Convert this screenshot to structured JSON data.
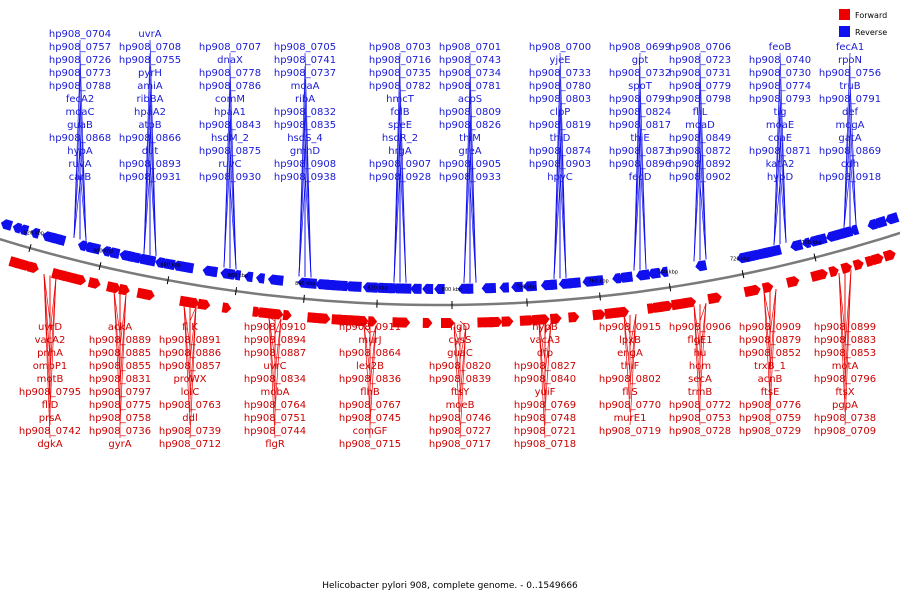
{
  "caption": "Helicobacter pylori 908, complete genome. - 0..1549666",
  "legend": [
    {
      "label": "Forward",
      "color": "#ee0000"
    },
    {
      "label": "Reverse",
      "color": "#1010ee"
    }
  ],
  "colors": {
    "forward": "#ee0000",
    "reverse": "#1010ee",
    "backbone": "#7a7a7a"
  },
  "ticks": [
    "920 kbp",
    "900 kbp",
    "880 kbp",
    "860 kbp",
    "840 kbp",
    "820 kbp",
    "800 kbp",
    "780 kbp",
    "760 kbp",
    "740 kbp",
    "720 kbp",
    "700 kbp"
  ],
  "reverse_labels": [
    "carB",
    "hp908_0931",
    "hp908_0930",
    "hp908_0938",
    "hp908_0928",
    "hp908_0933",
    "hpyC",
    "fecD",
    "hp908_0902",
    "hypD",
    "hp908_0918",
    "ruvA",
    "hp908_0893",
    "ruvC",
    "hp908_0908",
    "hp908_0907",
    "hp908_0905",
    "hp908_0903",
    "hp908_0896",
    "hp908_0892",
    "katA2",
    "cdh",
    "hypA",
    "dut",
    "hp908_0875",
    "gmhD",
    "hrgA",
    "greA",
    "hp908_0874",
    "hp908_0873",
    "hp908_0872",
    "hp908_0871",
    "hp908_0869",
    "hp908_0868",
    "hp908_0866",
    "hsdM_2",
    "hsdS_4",
    "hsdR_2",
    "thiM",
    "thiD",
    "thiE",
    "hp908_0849",
    "coaE",
    "gatA",
    "guaB",
    "atpB",
    "hp908_0843",
    "hp908_0835",
    "speE",
    "hp908_0826",
    "hp908_0819",
    "hp908_0817",
    "moaD",
    "moaE",
    "mogA",
    "moaC",
    "hpaA2",
    "hpaA1",
    "hp908_0832",
    "folB",
    "hp908_0809",
    "clpP",
    "hp908_0824",
    "fliL",
    "tig",
    "def",
    "fecA2",
    "ribBA",
    "comM",
    "ribA",
    "hmcT",
    "acpS",
    "hp908_0803",
    "hp908_0799",
    "hp908_0798",
    "hp908_0793",
    "hp908_0791",
    "hp908_0788",
    "amiA",
    "hp908_0786",
    "moaA",
    "hp908_0782",
    "hp908_0781",
    "hp908_0780",
    "spoT",
    "hp908_0779",
    "hp908_0774",
    "truB",
    "hp908_0773",
    "pyrH",
    "hp908_0778",
    "hp908_0737",
    "hp908_0735",
    "hp908_0734",
    "hp908_0733",
    "hp908_0732",
    "hp908_0731",
    "hp908_0730",
    "hp908_0756",
    "hp908_0726",
    "hp908_0755",
    "dnaX",
    "hp908_0741",
    "hp908_0716",
    "hp908_0743",
    "yjeE",
    "gpt",
    "hp908_0723",
    "hp908_0740",
    "rpoN",
    "hp908_0757",
    "hp908_0708",
    "hp908_0707",
    "hp908_0705",
    "hp908_0703",
    "hp908_0701",
    "hp908_0700",
    "hp908_0699",
    "hp908_0706",
    "feoB",
    "fecA1",
    "hp908_0704",
    "uvrA"
  ],
  "forward_labels": [
    "uvrD",
    "ackA",
    "fliK",
    "hp908_0910",
    "hp908_0911",
    "flgD",
    "hypB",
    "hp908_0915",
    "hp908_0906",
    "hp908_0909",
    "hp908_0899",
    "vacA2",
    "hp908_0889",
    "hp908_0891",
    "hp908_0894",
    "murJ",
    "cysS",
    "vacA3",
    "lpxB",
    "flgE1",
    "hp908_0879",
    "hp908_0883",
    "pnhA",
    "hp908_0885",
    "hp908_0886",
    "hp908_0887",
    "hp908_0864",
    "guaC",
    "dfp",
    "engA",
    "hu",
    "hp908_0852",
    "hp908_0853",
    "ompP1",
    "hp908_0855",
    "hp908_0857",
    "uvrC",
    "lex2B",
    "hp908_0820",
    "hp908_0827",
    "thiF",
    "hom",
    "trxB_1",
    "motA",
    "motB",
    "hp908_0831",
    "proWX",
    "hp908_0834",
    "hp908_0836",
    "hp908_0839",
    "hp908_0840",
    "hp908_0802",
    "secA",
    "acnB",
    "hp908_0796",
    "hp908_0795",
    "hp908_0797",
    "lolC",
    "mobA",
    "flhB",
    "ftsY",
    "yuiF",
    "fliS",
    "trmB",
    "ftsE",
    "ftsX",
    "fliD",
    "hp908_0775",
    "hp908_0763",
    "hp908_0764",
    "hp908_0767",
    "moeB",
    "hp908_0769",
    "hp908_0770",
    "hp908_0772",
    "hp908_0776",
    "pgpA",
    "prsA",
    "hp908_0758",
    "ddl",
    "hp908_0751",
    "hp908_0745",
    "hp908_0746",
    "hp908_0748",
    "murE1",
    "hp908_0753",
    "hp908_0759",
    "hp908_0738",
    "hp908_0742",
    "hp908_0736",
    "hp908_0739",
    "hp908_0744",
    "comGF",
    "hp908_0727",
    "hp908_0721",
    "hp908_0719",
    "hp908_0728",
    "hp908_0729",
    "hp908_0709",
    "dgkA",
    "gyrA",
    "hp908_0712",
    "flgR",
    "hp908_0715",
    "hp908_0717",
    "hp908_0718"
  ]
}
